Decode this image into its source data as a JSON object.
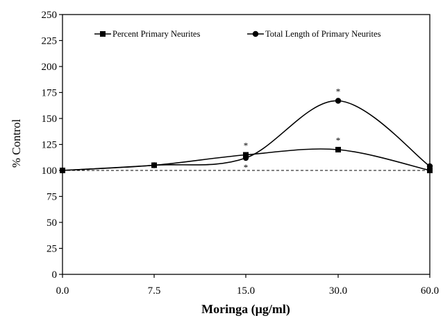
{
  "chart_data": {
    "type": "line",
    "xlabel": "Moringa (μg/ml)",
    "ylabel": "% Control",
    "x": [
      "0.0",
      "7.5",
      "15.0",
      "30.0",
      "60.0"
    ],
    "ylim": [
      0,
      250
    ],
    "yticks": [
      "0",
      "25",
      "50",
      "75",
      "100",
      "125",
      "150",
      "175",
      "200",
      "225",
      "250"
    ],
    "series": [
      {
        "name": "Percent Primary Neurites",
        "marker": "square",
        "values": [
          100,
          105,
          115,
          120,
          100
        ],
        "significant": [
          false,
          false,
          true,
          true,
          false
        ]
      },
      {
        "name": "Total Length of Primary Neurites",
        "marker": "circle",
        "values": [
          100,
          105,
          112,
          167,
          104
        ],
        "significant": [
          false,
          false,
          true,
          true,
          false
        ]
      }
    ],
    "reference_line": {
      "y": 100,
      "style": "dashed"
    },
    "annotation_mark": "*",
    "legend": "top",
    "grid": false
  }
}
